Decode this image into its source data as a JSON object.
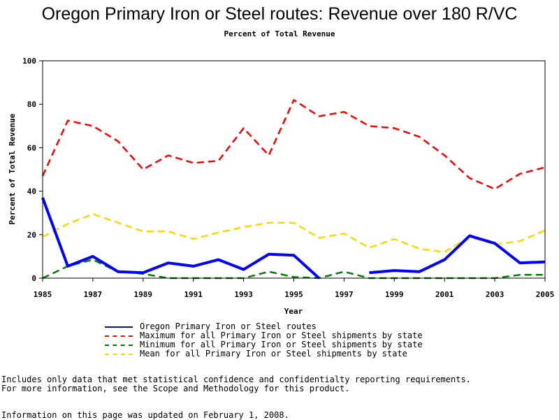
{
  "title": "Oregon Primary Iron or Steel routes: Revenue over 180 R/VC",
  "subtitle": "Percent of Total Revenue",
  "notes": {
    "line1": "Includes only data that met statistical confidence and confidentialty reporting requirements.",
    "line2": "For more information, see the Scope and Methodology for this product.",
    "updated": "Information on this page was updated on February 1, 2008."
  },
  "chart_data": {
    "type": "line",
    "xlabel": "Year",
    "ylabel": "Percent of Total Revenue",
    "xlim": [
      1985,
      2005
    ],
    "ylim": [
      0,
      100
    ],
    "x_ticks": [
      "1985",
      "1987",
      "1989",
      "1991",
      "1993",
      "1995",
      "1997",
      "1999",
      "2001",
      "2003",
      "2005"
    ],
    "y_ticks": [
      "0",
      "20",
      "40",
      "60",
      "80",
      "100"
    ],
    "grid": false,
    "legend_position": "bottom",
    "series": [
      {
        "name": "Oregon Primary Iron or Steel routes",
        "color": "#0000ff",
        "style": "solid",
        "points": [
          [
            1985,
            37
          ],
          [
            1986,
            5.5
          ],
          [
            1987,
            10
          ],
          [
            1988,
            3
          ],
          [
            1989,
            2.5
          ],
          [
            1990,
            7
          ],
          [
            1991,
            5.5
          ],
          [
            1992,
            8.5
          ],
          [
            1993,
            4
          ],
          [
            1994,
            11
          ],
          [
            1995,
            10.5
          ],
          [
            1996,
            0
          ],
          null,
          [
            1998,
            2.5
          ],
          [
            1999,
            3.5
          ],
          [
            2000,
            3
          ],
          [
            2001,
            8.5
          ],
          [
            2002,
            19.5
          ],
          [
            2003,
            16
          ],
          [
            2004,
            7
          ],
          [
            2005,
            7.5
          ]
        ]
      },
      {
        "name": "Maximum for all Primary Iron or Steel shipments by state",
        "color": "#ff0000",
        "style": "dashed",
        "points": [
          [
            1985,
            47
          ],
          [
            1986,
            72.5
          ],
          [
            1987,
            70
          ],
          [
            1988,
            63
          ],
          [
            1989,
            50
          ],
          [
            1990,
            56.5
          ],
          [
            1991,
            53
          ],
          [
            1992,
            54
          ],
          [
            1993,
            69
          ],
          [
            1994,
            56.5
          ],
          [
            1995,
            82
          ],
          [
            1996,
            74.5
          ],
          [
            1997,
            76.5
          ],
          [
            1998,
            70
          ],
          [
            1999,
            69
          ],
          [
            2000,
            65
          ],
          [
            2001,
            56.5
          ],
          [
            2002,
            46
          ],
          [
            2003,
            41
          ],
          [
            2004,
            48
          ],
          [
            2005,
            51
          ]
        ]
      },
      {
        "name": "Minimum for all Primary Iron or Steel shipments by state",
        "color": "#008000",
        "style": "dashed",
        "points": [
          [
            1985,
            0
          ],
          [
            1986,
            5.5
          ],
          [
            1987,
            8.5
          ],
          [
            1988,
            3
          ],
          [
            1989,
            2
          ],
          [
            1990,
            0
          ],
          [
            1991,
            0
          ],
          [
            1992,
            0
          ],
          [
            1993,
            0
          ],
          [
            1994,
            3
          ],
          [
            1995,
            0.5
          ],
          [
            1996,
            0
          ],
          [
            1997,
            3
          ],
          [
            1998,
            0
          ],
          [
            1999,
            0
          ],
          [
            2000,
            0
          ],
          [
            2001,
            0
          ],
          [
            2002,
            0
          ],
          [
            2003,
            0
          ],
          [
            2004,
            1.5
          ],
          [
            2005,
            1.5
          ]
        ]
      },
      {
        "name": "Mean for all Primary Iron or Steel shipments by state",
        "color": "#ffd700",
        "style": "dashed",
        "points": [
          [
            1985,
            19
          ],
          [
            1986,
            25
          ],
          [
            1987,
            29.5
          ],
          [
            1988,
            25.5
          ],
          [
            1989,
            21.5
          ],
          [
            1990,
            21.5
          ],
          [
            1991,
            18
          ],
          [
            1992,
            21
          ],
          [
            1993,
            23.5
          ],
          [
            1994,
            25.5
          ],
          [
            1995,
            25.5
          ],
          [
            1996,
            18.5
          ],
          [
            1997,
            20.5
          ],
          [
            1998,
            14
          ],
          [
            1999,
            18
          ],
          [
            2000,
            13.5
          ],
          [
            2001,
            12
          ],
          [
            2002,
            19
          ],
          [
            2003,
            15.5
          ],
          [
            2004,
            17
          ],
          [
            2005,
            22
          ]
        ]
      }
    ]
  }
}
